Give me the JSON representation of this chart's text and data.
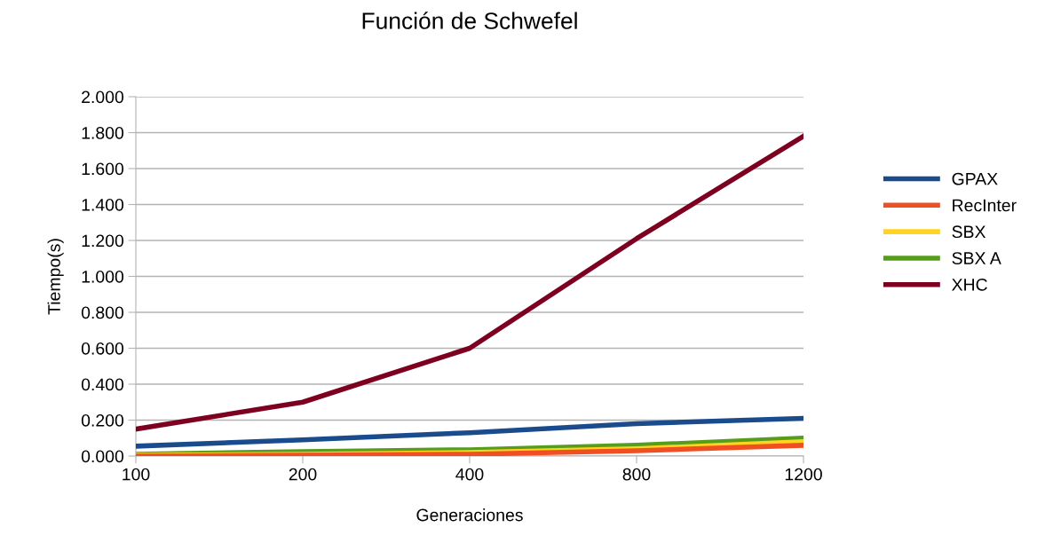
{
  "chart_data": {
    "type": "line",
    "title": "Función de Schwefel",
    "xlabel": "Generaciones",
    "ylabel": "Tiempo(s)",
    "categories": [
      "100",
      "200",
      "400",
      "800",
      "1200"
    ],
    "series": [
      {
        "name": "GPAX",
        "color": "#1a4b8c",
        "values": [
          0.055,
          0.09,
          0.13,
          0.18,
          0.21
        ]
      },
      {
        "name": "RecInter",
        "color": "#f04e23",
        "values": [
          0.0,
          0.005,
          0.01,
          0.03,
          0.06
        ]
      },
      {
        "name": "SBX",
        "color": "#ffd320",
        "values": [
          0.005,
          0.01,
          0.02,
          0.04,
          0.08
        ]
      },
      {
        "name": "SBX A",
        "color": "#579d1c",
        "values": [
          0.01,
          0.025,
          0.035,
          0.06,
          0.1
        ]
      },
      {
        "name": "XHC",
        "color": "#7e0021",
        "values": [
          0.15,
          0.3,
          0.6,
          1.21,
          1.78
        ]
      }
    ],
    "ylim": [
      0,
      2
    ],
    "yticks": [
      {
        "value": 0,
        "label": "0.000"
      },
      {
        "value": 0.2,
        "label": "0.200"
      },
      {
        "value": 0.4,
        "label": "0.400"
      },
      {
        "value": 0.6,
        "label": "0.600"
      },
      {
        "value": 0.8,
        "label": "0.800"
      },
      {
        "value": 1.0,
        "label": "1.000"
      },
      {
        "value": 1.2,
        "label": "1.200"
      },
      {
        "value": 1.4,
        "label": "1.400"
      },
      {
        "value": 1.6,
        "label": "1.600"
      },
      {
        "value": 1.8,
        "label": "1.800"
      },
      {
        "value": 2.0,
        "label": "2.000"
      }
    ],
    "grid": "y",
    "legend": "right",
    "marker": "none",
    "line_style": "solid"
  }
}
